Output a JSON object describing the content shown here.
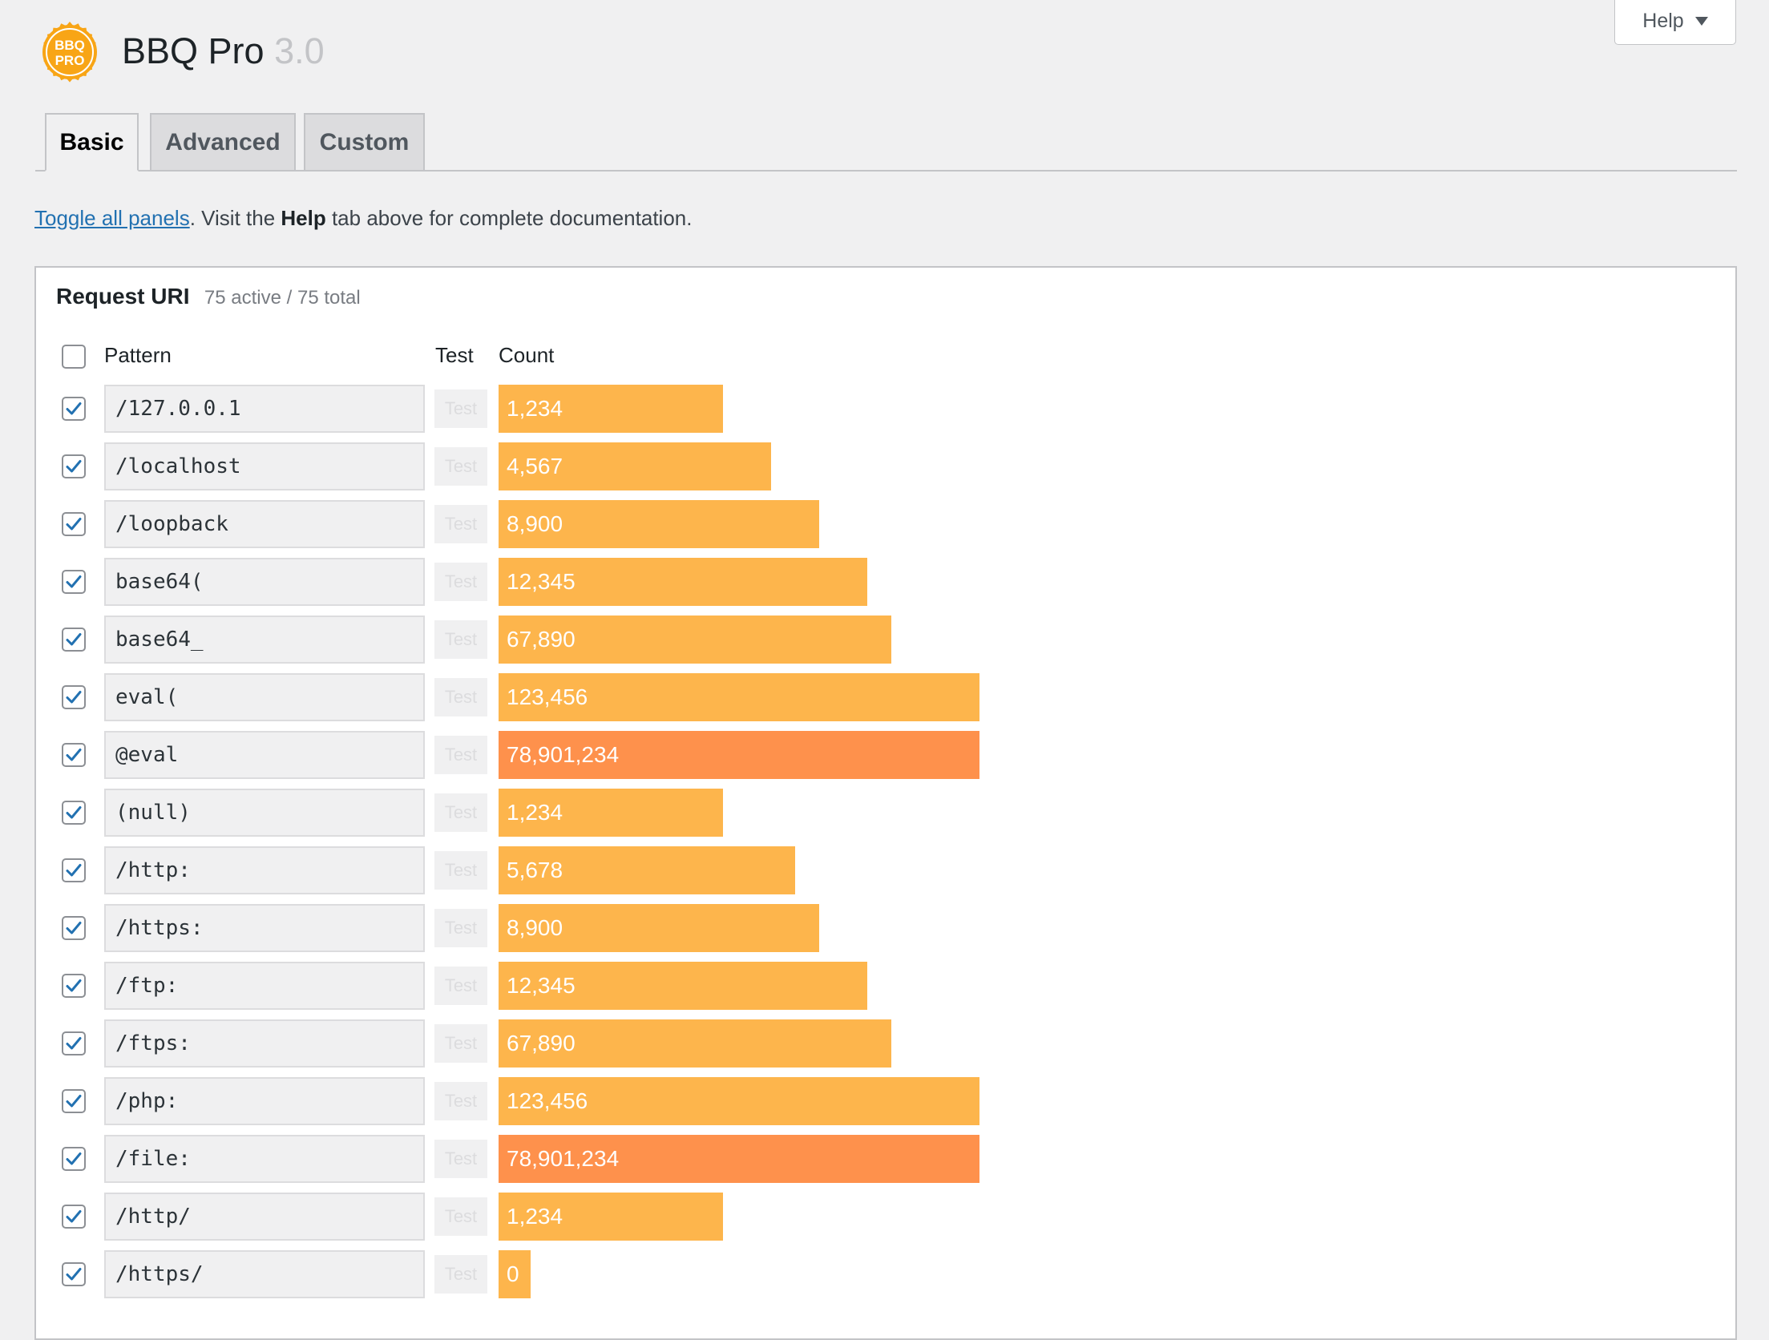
{
  "header": {
    "title": "BBQ Pro",
    "version": "3.0",
    "logo_text_1": "BBQ",
    "logo_text_2": "PRO",
    "help_label": "Help"
  },
  "tabs": [
    {
      "label": "Basic",
      "active": true
    },
    {
      "label": "Advanced",
      "active": false
    },
    {
      "label": "Custom",
      "active": false
    }
  ],
  "intro": {
    "link": "Toggle all panels",
    "text_before_help": ". Visit the ",
    "help_word": "Help",
    "text_after_help": " tab above for complete documentation."
  },
  "panel": {
    "title": "Request URI",
    "meta": "75 active / 75 total",
    "columns": {
      "pattern": "Pattern",
      "test": "Test",
      "count": "Count"
    },
    "test_label": "Test",
    "rows": [
      {
        "pattern": "/127.0.0.1",
        "count": "1,234",
        "value": 1234
      },
      {
        "pattern": "/localhost",
        "count": "4,567",
        "value": 4567
      },
      {
        "pattern": "/loopback",
        "count": "8,900",
        "value": 8900
      },
      {
        "pattern": "base64(",
        "count": "12,345",
        "value": 12345
      },
      {
        "pattern": "base64_",
        "count": "67,890",
        "value": 67890
      },
      {
        "pattern": "eval(",
        "count": "123,456",
        "value": 123456
      },
      {
        "pattern": "@eval",
        "count": "78,901,234",
        "value": 78901234
      },
      {
        "pattern": "(null)",
        "count": "1,234",
        "value": 1234
      },
      {
        "pattern": "/http:",
        "count": "5,678",
        "value": 5678
      },
      {
        "pattern": "/https:",
        "count": "8,900",
        "value": 8900
      },
      {
        "pattern": "/ftp:",
        "count": "12,345",
        "value": 12345
      },
      {
        "pattern": "/ftps:",
        "count": "67,890",
        "value": 67890
      },
      {
        "pattern": "/php:",
        "count": "123,456",
        "value": 123456
      },
      {
        "pattern": "/file:",
        "count": "78,901,234",
        "value": 78901234
      },
      {
        "pattern": "/http/",
        "count": "1,234",
        "value": 1234
      },
      {
        "pattern": "/https/",
        "count": "0",
        "value": 0
      }
    ]
  },
  "colors": {
    "bar": "#fdb54c",
    "bar_high": "#fe914c",
    "link": "#2271b1",
    "check": "#2271b1"
  }
}
